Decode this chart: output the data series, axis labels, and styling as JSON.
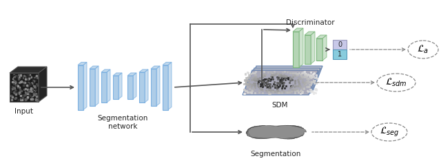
{
  "bg_color": "#ffffff",
  "input_label": "Input",
  "seg_net_label": "Segmentation\nnetwork",
  "discriminator_label": "Discriminator",
  "sdm_label": "SDM",
  "segmentation_label": "Segmentation",
  "loss_a": "$\\mathcal{L}_{a}$",
  "loss_sdm": "$\\mathcal{L}_{sdm}$",
  "loss_seg": "$\\mathcal{L}_{seg}$",
  "encoder_color": "#aecde8",
  "encoder_edge": "#7aafe0",
  "disc_color": "#b5d5b5",
  "disc_edge": "#7ab57a",
  "box_top_color": "#c8c8e8",
  "box_bot_color": "#88ccdd",
  "arrow_color": "#555555",
  "dashed_color": "#888888"
}
